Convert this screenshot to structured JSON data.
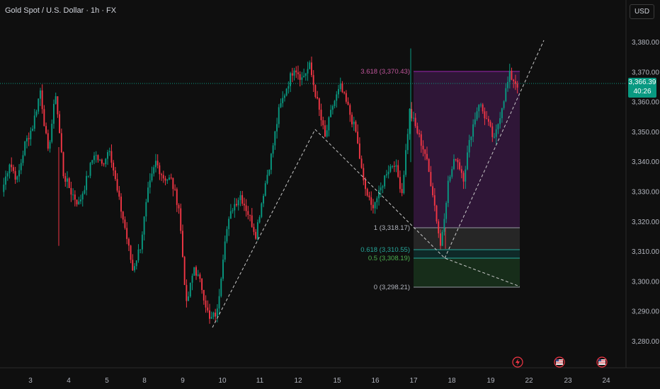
{
  "title": "Gold Spot / U.S. Dollar · 1h · FX",
  "currency_button": "USD",
  "last_price": "3,366.39",
  "countdown": "40:26",
  "colors": {
    "background": "#0f0f0f",
    "up": "#089981",
    "down": "#f23645",
    "fib_top": "#9c27b0",
    "fib_mid": "#26a69a"
  },
  "chart_data": {
    "type": "candlestick",
    "y_ticks": [
      3280,
      3290,
      3300,
      3310,
      3320,
      3330,
      3340,
      3350,
      3360,
      3370,
      3380
    ],
    "y_tick_labels": [
      "3,280.00",
      "3,290.00",
      "3,300.00",
      "3,310.00",
      "3,320.00",
      "3,330.00",
      "3,340.00",
      "3,350.00",
      "3,360.00",
      "3,370.00",
      "3,380.00"
    ],
    "x_tick_labels": [
      "3",
      "4",
      "5",
      "8",
      "9",
      "10",
      "11",
      "12",
      "15",
      "16",
      "17",
      "18",
      "19",
      "22",
      "23",
      "24"
    ],
    "fib_levels": [
      {
        "label": "3.618 (3,370.43)",
        "price": 3370.43
      },
      {
        "label": "1 (3,318.17)",
        "price": 3318.17
      },
      {
        "label": "0.618 (3,310.55)",
        "price": 3310.55
      },
      {
        "label": "0.5 (3,308.19)",
        "price": 3308.19
      },
      {
        "label": "0 (3,298.21)",
        "price": 3298.21
      }
    ],
    "price_path": [
      [
        3330,
        3340
      ],
      [
        3340,
        3334
      ],
      [
        3334,
        3346
      ],
      [
        3346,
        3352
      ],
      [
        3352,
        3364
      ],
      [
        3364,
        3343
      ],
      [
        3343,
        3363
      ],
      [
        3363,
        3336
      ],
      [
        3336,
        3330
      ],
      [
        3330,
        3326
      ],
      [
        3326,
        3334
      ],
      [
        3334,
        3343
      ],
      [
        3343,
        3339
      ],
      [
        3339,
        3345
      ],
      [
        3345,
        3330
      ],
      [
        3330,
        3318
      ],
      [
        3318,
        3304
      ],
      [
        3304,
        3312
      ],
      [
        3312,
        3330
      ],
      [
        3330,
        3340
      ],
      [
        3340,
        3335
      ],
      [
        3335,
        3334
      ],
      [
        3334,
        3325
      ],
      [
        3325,
        3292
      ],
      [
        3292,
        3305
      ],
      [
        3305,
        3298
      ],
      [
        3298,
        3287
      ],
      [
        3287,
        3290
      ],
      [
        3290,
        3315
      ],
      [
        3315,
        3325
      ],
      [
        3325,
        3329
      ],
      [
        3329,
        3323
      ],
      [
        3323,
        3316
      ],
      [
        3316,
        3330
      ],
      [
        3330,
        3342
      ],
      [
        3342,
        3357
      ],
      [
        3357,
        3365
      ],
      [
        3365,
        3372
      ],
      [
        3372,
        3368
      ],
      [
        3368,
        3372
      ],
      [
        3372,
        3360
      ],
      [
        3360,
        3348
      ],
      [
        3348,
        3359
      ],
      [
        3359,
        3365
      ],
      [
        3365,
        3358
      ],
      [
        3358,
        3350
      ],
      [
        3350,
        3333
      ],
      [
        3333,
        3325
      ],
      [
        3325,
        3329
      ],
      [
        3329,
        3337
      ],
      [
        3337,
        3340
      ],
      [
        3340,
        3330
      ],
      [
        3330,
        3357
      ],
      [
        3357,
        3350
      ],
      [
        3350,
        3343
      ],
      [
        3343,
        3330
      ],
      [
        3330,
        3312
      ],
      [
        3312,
        3333
      ],
      [
        3333,
        3342
      ],
      [
        3342,
        3335
      ],
      [
        3335,
        3350
      ],
      [
        3350,
        3360
      ],
      [
        3360,
        3354
      ],
      [
        3354,
        3347
      ],
      [
        3347,
        3359
      ],
      [
        3359,
        3369
      ],
      [
        3369,
        3366
      ]
    ],
    "wicks": {
      "high": 3378,
      "low": 3281
    }
  }
}
